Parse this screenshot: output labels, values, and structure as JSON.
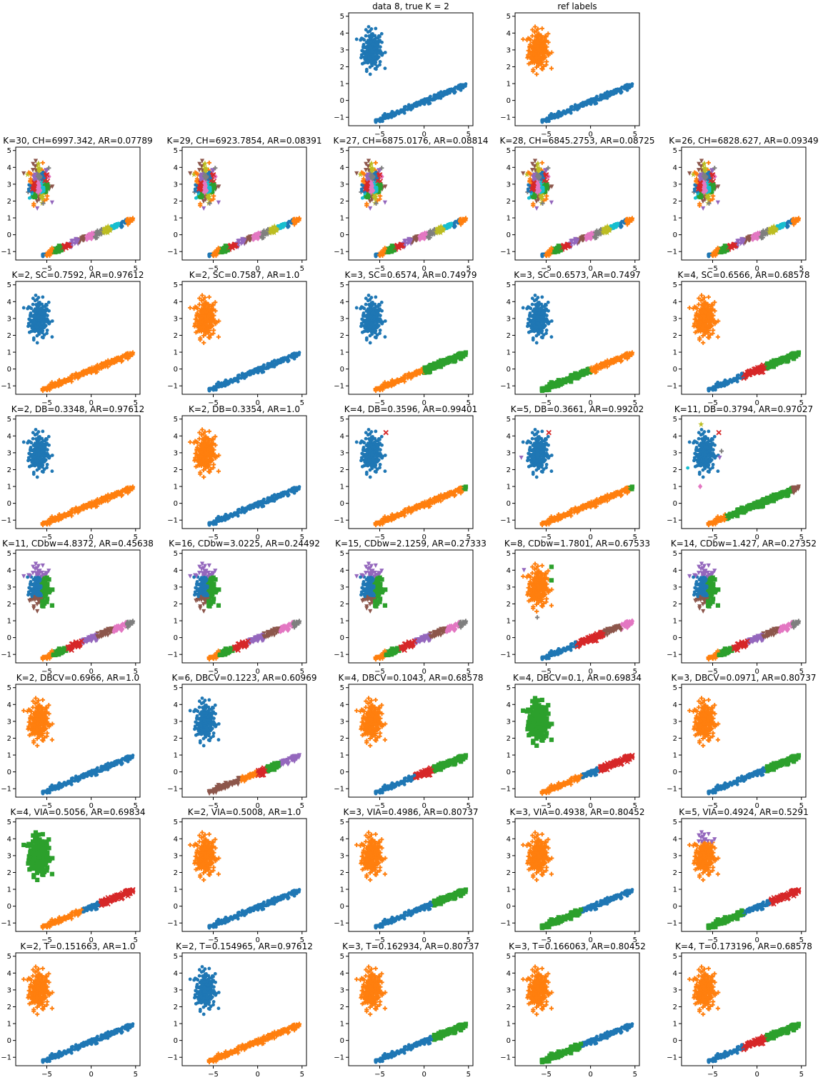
{
  "figure": {
    "x_ticks": [
      "−5",
      "0",
      "5"
    ],
    "y_ticks": [
      "−1",
      "0",
      "1",
      "2",
      "3",
      "4",
      "5"
    ],
    "xlim": [
      -8.5,
      5.5
    ],
    "ylim": [
      -1.5,
      5.2
    ]
  },
  "palette": [
    "#1f77b4",
    "#ff7f0e",
    "#2ca02c",
    "#d62728",
    "#9467bd",
    "#8c564b",
    "#e377c2",
    "#7f7f7f",
    "#bcbd22",
    "#17becf"
  ],
  "markers": [
    "circle",
    "plus",
    "square",
    "x",
    "triangle-down",
    "triangle-down",
    "diamond",
    "plus",
    "star",
    "circle"
  ],
  "chart_data": [
    {
      "type": "scatter",
      "title": "data 8, true K = 2",
      "K": 2,
      "colors": [
        "#1f77b4",
        "#1f77b4"
      ],
      "markers": [
        "circle",
        "circle"
      ],
      "style": "blob"
    },
    {
      "type": "scatter",
      "title": "ref labels",
      "K": 2,
      "colors": [
        "#ff7f0e",
        "#1f77b4"
      ],
      "markers": [
        "plus",
        "circle"
      ]
    },
    {
      "type": "scatter",
      "title": "K=30, CH=6997.342, AR=0.07789",
      "K": 30,
      "mode": "many"
    },
    {
      "type": "scatter",
      "title": "K=29, CH=6923.7854, AR=0.08391",
      "K": 29,
      "mode": "many"
    },
    {
      "type": "scatter",
      "title": "K=27, CH=6875.0176, AR=0.08814",
      "K": 27,
      "mode": "many"
    },
    {
      "type": "scatter",
      "title": "K=28, CH=6845.2753, AR=0.08725",
      "K": 28,
      "mode": "many"
    },
    {
      "type": "scatter",
      "title": "K=26, CH=6828.627, AR=0.09349",
      "K": 26,
      "mode": "many"
    },
    {
      "type": "scatter",
      "title": "K=2, SC=0.7592, AR=0.97612",
      "K": 2,
      "blob": 0,
      "line": [
        [
          1,
          -1000000000.0,
          1000000000.0
        ]
      ]
    },
    {
      "type": "scatter",
      "title": "K=2, SC=0.7587, AR=1.0",
      "K": 2,
      "blob": 1,
      "line": [
        [
          0,
          -1000000000.0,
          1000000000.0
        ]
      ]
    },
    {
      "type": "scatter",
      "title": "K=3, SC=0.6574, AR=0.74979",
      "K": 3,
      "blob": 0,
      "line": [
        [
          1,
          -1000000000.0,
          0
        ],
        [
          2,
          0,
          1000000000.0
        ]
      ]
    },
    {
      "type": "scatter",
      "title": "K=3, SC=0.6573, AR=0.7497",
      "K": 3,
      "blob": 0,
      "line": [
        [
          2,
          -1000000000.0,
          0
        ],
        [
          1,
          0,
          1000000000.0
        ]
      ]
    },
    {
      "type": "scatter",
      "title": "K=4, SC=0.6566, AR=0.68578",
      "K": 4,
      "blob": 1,
      "line": [
        [
          0,
          -1000000000.0,
          -1.5
        ],
        [
          3,
          -1.5,
          1
        ],
        [
          2,
          1,
          1000000000.0
        ]
      ]
    },
    {
      "type": "scatter",
      "title": "K=2, DB=0.3348, AR=0.97612",
      "K": 2,
      "blob": 0,
      "line": [
        [
          1,
          -1000000000.0,
          1000000000.0
        ]
      ]
    },
    {
      "type": "scatter",
      "title": "K=2, DB=0.3354, AR=1.0",
      "K": 2,
      "blob": 1,
      "line": [
        [
          0,
          -1000000000.0,
          1000000000.0
        ]
      ]
    },
    {
      "type": "scatter",
      "title": "K=4, DB=0.3596, AR=0.99401",
      "K": 4,
      "blob": 0,
      "line": [
        [
          1,
          -1000000000.0,
          4.4
        ],
        [
          2,
          4.4,
          1000000000.0
        ]
      ],
      "extras": [
        [
          3,
          -4.3,
          4.2
        ]
      ]
    },
    {
      "type": "scatter",
      "title": "K=5, DB=0.3661, AR=0.99202",
      "K": 5,
      "blob": 0,
      "line": [
        [
          1,
          -1000000000.0,
          4.4
        ],
        [
          2,
          4.4,
          1000000000.0
        ]
      ],
      "extras": [
        [
          3,
          -4.7,
          4.2
        ],
        [
          4,
          -7.8,
          2.7
        ]
      ]
    },
    {
      "type": "scatter",
      "title": "K=11, DB=0.3794, AR=0.97027",
      "K": 11,
      "blob": 0,
      "line": [
        [
          1,
          -1000000000.0,
          -3.5
        ],
        [
          2,
          -3.5,
          3.9
        ],
        [
          5,
          3.9,
          1000000000.0
        ]
      ],
      "extras": [
        [
          3,
          -4.3,
          4.2
        ],
        [
          4,
          -4.2,
          2.7
        ],
        [
          8,
          -6.3,
          4.7
        ],
        [
          9,
          -7.8,
          2.1
        ],
        [
          6,
          -6.4,
          1.0
        ],
        [
          7,
          -4.0,
          3.1
        ]
      ]
    },
    {
      "type": "scatter",
      "title": "K=11, CDbw=4.8372, AR=0.45638",
      "K": 11,
      "mode": "split"
    },
    {
      "type": "scatter",
      "title": "K=16, CDbw=3.0225, AR=0.24492",
      "K": 16,
      "mode": "split"
    },
    {
      "type": "scatter",
      "title": "K=15, CDbw=2.1259, AR=0.27333",
      "K": 15,
      "mode": "split"
    },
    {
      "type": "scatter",
      "title": "K=8, CDbw=1.7801, AR=0.67533",
      "K": 8,
      "blob": 1,
      "line": [
        [
          0,
          -1000000000.0,
          -1.5
        ],
        [
          3,
          -1.5,
          1.5
        ],
        [
          5,
          1.5,
          3.5
        ],
        [
          6,
          3.5,
          1000000000.0
        ]
      ],
      "extras": [
        [
          4,
          -7.5,
          4.0
        ],
        [
          2,
          -4.4,
          4.2
        ],
        [
          2,
          -4.4,
          3.4
        ],
        [
          7,
          -6.0,
          1.2
        ]
      ]
    },
    {
      "type": "scatter",
      "title": "K=14, CDbw=1.427, AR=0.27352",
      "K": 14,
      "mode": "split"
    },
    {
      "type": "scatter",
      "title": "K=2, DBCV=0.6966, AR=1.0",
      "K": 2,
      "blob": 1,
      "line": [
        [
          0,
          -1000000000.0,
          1000000000.0
        ]
      ]
    },
    {
      "type": "scatter",
      "title": "K=6, DBCV=0.1223, AR=0.60969",
      "K": 6,
      "blob": 0,
      "line": [
        [
          5,
          -1000000000.0,
          -2
        ],
        [
          1,
          -2,
          0
        ],
        [
          3,
          0,
          1
        ],
        [
          2,
          1,
          2.5
        ],
        [
          4,
          2.5,
          1000000000.0
        ]
      ]
    },
    {
      "type": "scatter",
      "title": "K=4, DBCV=0.1043, AR=0.68578",
      "K": 4,
      "blob": 1,
      "line": [
        [
          0,
          -1000000000.0,
          -1
        ],
        [
          3,
          -1,
          1
        ],
        [
          2,
          1,
          1000000000.0
        ]
      ]
    },
    {
      "type": "scatter",
      "title": "K=4, DBCV=0.1, AR=0.69834",
      "K": 4,
      "blob": 2,
      "line": [
        [
          1,
          -1000000000.0,
          -1
        ],
        [
          0,
          -1,
          1
        ],
        [
          3,
          1,
          1000000000.0
        ]
      ]
    },
    {
      "type": "scatter",
      "title": "K=3, DBCV=0.0971, AR=0.80737",
      "K": 3,
      "blob": 1,
      "line": [
        [
          0,
          -1000000000.0,
          1
        ],
        [
          2,
          1,
          1000000000.0
        ]
      ]
    },
    {
      "type": "scatter",
      "title": "K=4, VIA=0.5056, AR=0.69834",
      "K": 4,
      "blob": 2,
      "line": [
        [
          1,
          -1000000000.0,
          -1
        ],
        [
          0,
          -1,
          1
        ],
        [
          3,
          1,
          1000000000.0
        ]
      ]
    },
    {
      "type": "scatter",
      "title": "K=2, VIA=0.5008, AR=1.0",
      "K": 2,
      "blob": 1,
      "line": [
        [
          0,
          -1000000000.0,
          1000000000.0
        ]
      ]
    },
    {
      "type": "scatter",
      "title": "K=3, VIA=0.4986, AR=0.80737",
      "K": 3,
      "blob": 1,
      "line": [
        [
          0,
          -1000000000.0,
          1
        ],
        [
          2,
          1,
          1000000000.0
        ]
      ]
    },
    {
      "type": "scatter",
      "title": "K=3, VIA=0.4938, AR=0.80452",
      "K": 3,
      "blob": 1,
      "line": [
        [
          2,
          -1000000000.0,
          -1
        ],
        [
          0,
          -1,
          1000000000.0
        ]
      ]
    },
    {
      "type": "scatter",
      "title": "K=5, VIA=0.4924, AR=0.5291",
      "K": 5,
      "blob": 1,
      "blobTop": 4,
      "line": [
        [
          2,
          -1000000000.0,
          -1.5
        ],
        [
          0,
          -1.5,
          1.5
        ],
        [
          3,
          1.5,
          1000000000.0
        ]
      ]
    },
    {
      "type": "scatter",
      "title": "K=2, T=0.151663, AR=1.0",
      "K": 2,
      "blob": 1,
      "line": [
        [
          0,
          -1000000000.0,
          1000000000.0
        ]
      ]
    },
    {
      "type": "scatter",
      "title": "K=2, T=0.154965, AR=0.97612",
      "K": 2,
      "blob": 0,
      "line": [
        [
          1,
          -1000000000.0,
          1000000000.0
        ]
      ]
    },
    {
      "type": "scatter",
      "title": "K=3, T=0.162934, AR=0.80737",
      "K": 3,
      "blob": 1,
      "line": [
        [
          0,
          -1000000000.0,
          1
        ],
        [
          2,
          1,
          1000000000.0
        ]
      ]
    },
    {
      "type": "scatter",
      "title": "K=3, T=0.166063, AR=0.80452",
      "K": 3,
      "blob": 1,
      "line": [
        [
          2,
          -1000000000.0,
          -1
        ],
        [
          0,
          -1,
          1000000000.0
        ]
      ]
    },
    {
      "type": "scatter",
      "title": "K=4, T=0.173196, AR=0.68578",
      "K": 4,
      "blob": 1,
      "line": [
        [
          0,
          -1000000000.0,
          -1.5
        ],
        [
          3,
          -1.5,
          1
        ],
        [
          2,
          1,
          1000000000.0
        ]
      ]
    }
  ]
}
